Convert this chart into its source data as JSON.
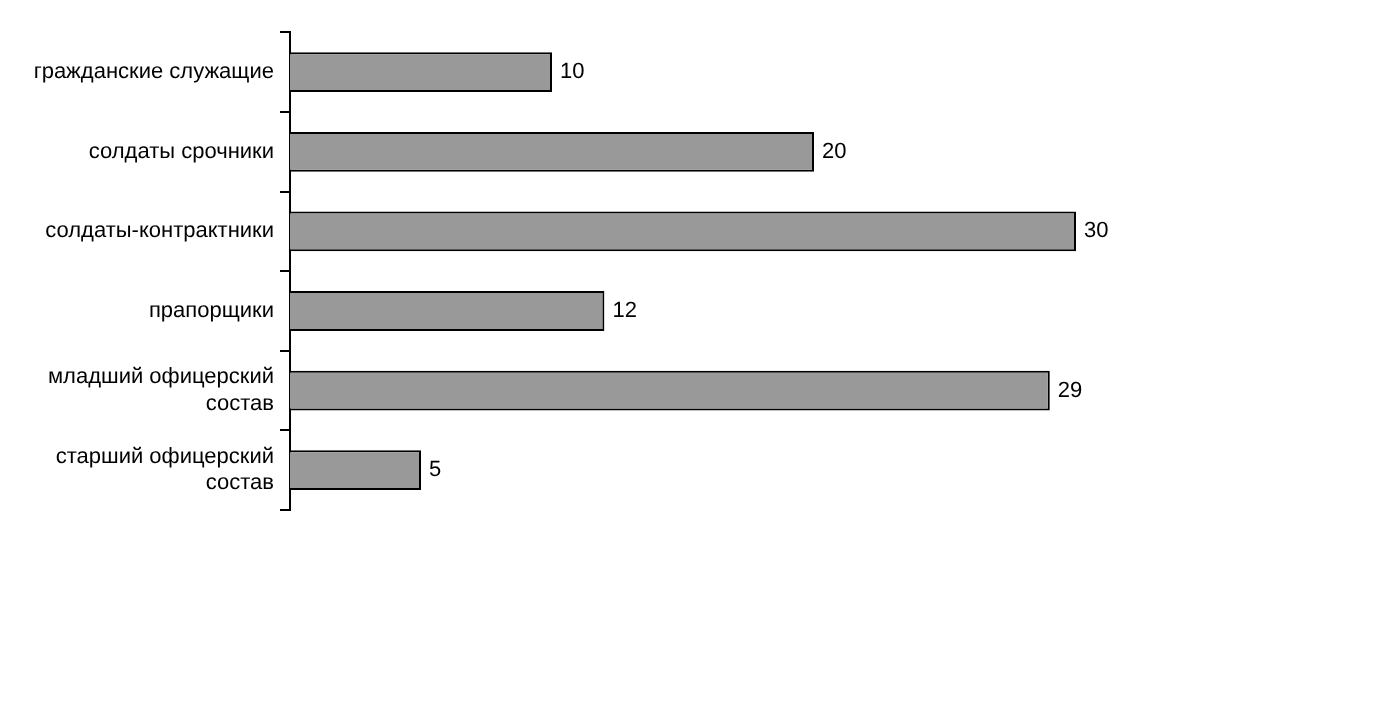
{
  "chart_data": {
    "type": "bar",
    "orientation": "horizontal",
    "categories": [
      "гражданские служащие",
      "солдаты срочники",
      "солдаты-контрактники",
      "прапорщики",
      "младший офицерский состав",
      "старший офицерский состав"
    ],
    "values": [
      10,
      20,
      30,
      12,
      29,
      5
    ],
    "color": "#999999",
    "data_labels": true,
    "legend": false
  }
}
